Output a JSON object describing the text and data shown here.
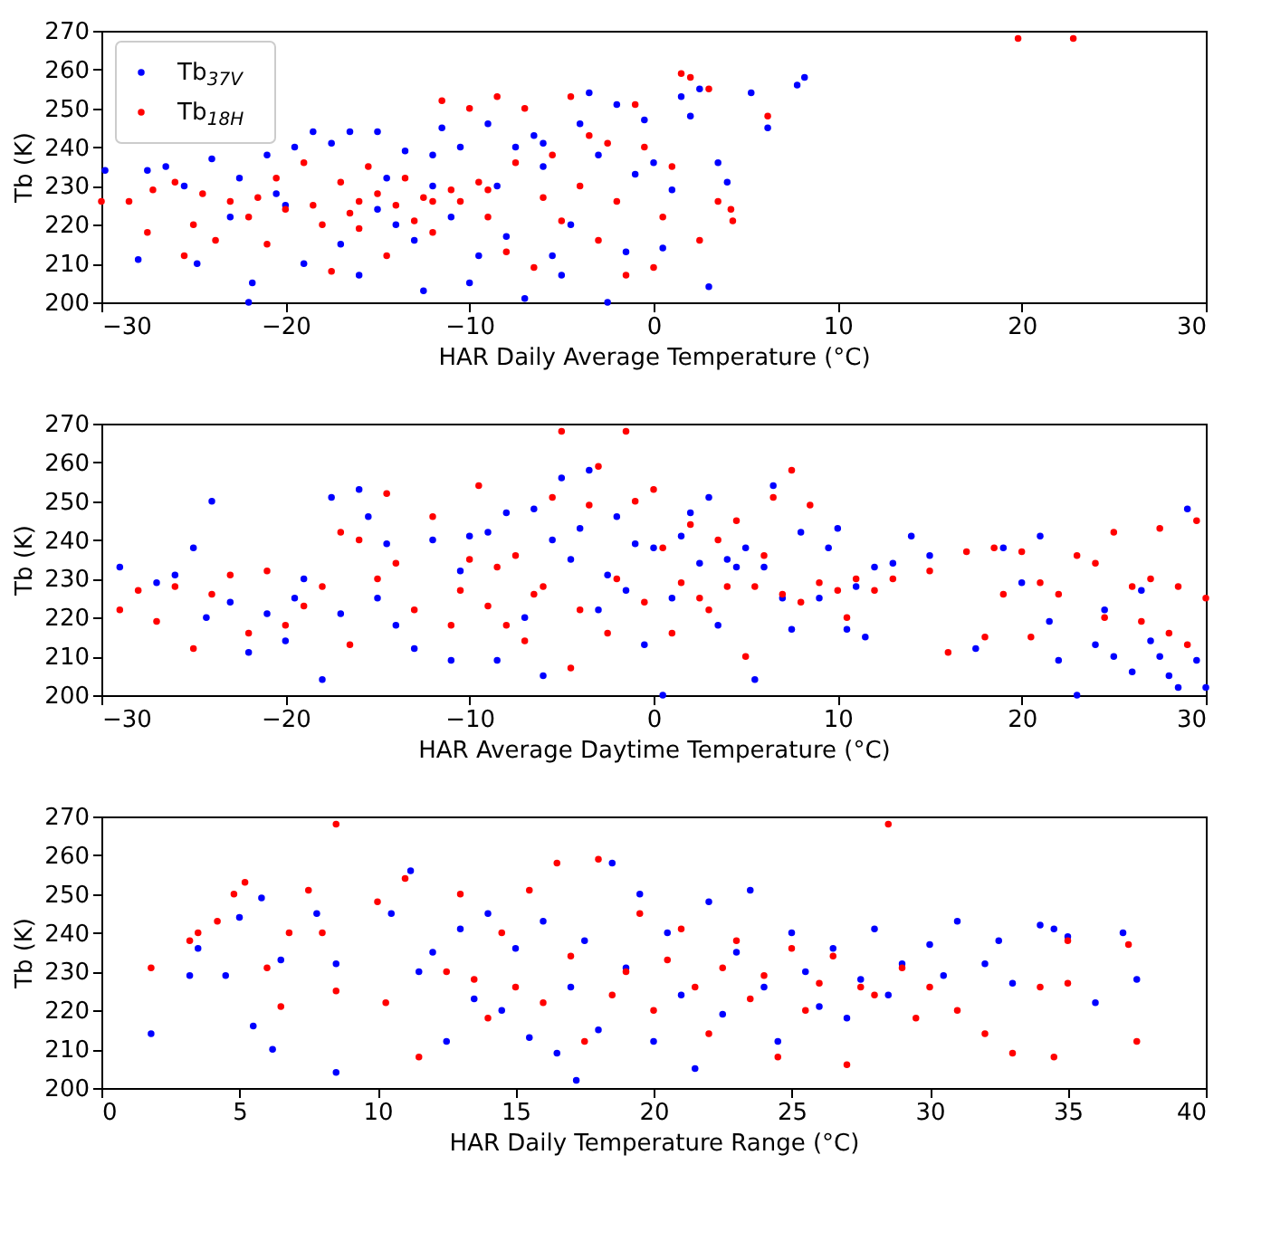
{
  "chart_data": [
    {
      "type": "scatter",
      "xlabel": "HAR Daily Average Temperature (°C)",
      "ylabel": "Tb (K)",
      "marker": "circle",
      "grid": false,
      "legend": "top left",
      "xlim": [
        -30,
        30
      ],
      "xticks": [
        {
          "value": -30,
          "label": "−30"
        },
        {
          "value": -20,
          "label": "−20"
        },
        {
          "value": -10,
          "label": "−10"
        },
        0,
        10,
        20,
        30
      ],
      "ylim": [
        200,
        270
      ],
      "yticks": [
        200,
        210,
        220,
        230,
        240,
        250,
        260,
        270
      ],
      "series": [
        {
          "name": "Tb$_{37V}$",
          "color": "#0000ff",
          "x": [
            -29.8,
            -28,
            -27.5,
            -26.5,
            -25.5,
            -24.8,
            -24,
            -23,
            -22.5,
            -22,
            -21.8,
            -21,
            -20,
            -19.5,
            -19,
            -18.5,
            -17.5,
            -17,
            -16.5,
            -16,
            -15,
            -14.5,
            -14,
            -13.5,
            -13,
            -12.5,
            -12,
            -11.5,
            -11,
            -10.5,
            -10,
            -9.5,
            -9,
            -8.5,
            -8,
            -7.5,
            -7,
            -6.5,
            -6,
            -5.5,
            -5,
            -4.5,
            -4,
            -3.5,
            -3,
            -2.5,
            -2,
            -1.5,
            -1,
            -0.5,
            0,
            0.5,
            1,
            1.5,
            2,
            2.5,
            3,
            3.5,
            4,
            5.3,
            6.2,
            7.8,
            8.2,
            -6,
            -15,
            -20.5,
            -12
          ],
          "values": [
            234,
            211,
            234,
            235,
            230,
            210,
            237,
            222,
            232,
            200,
            205,
            238,
            225,
            240,
            210,
            244,
            241,
            215,
            244,
            207,
            244,
            232,
            220,
            239,
            216,
            203,
            238,
            245,
            222,
            240,
            205,
            212,
            246,
            230,
            217,
            240,
            201,
            243,
            235,
            212,
            207,
            220,
            246,
            254,
            238,
            200,
            251,
            213,
            233,
            247,
            236,
            214,
            229,
            253,
            248,
            255,
            204,
            236,
            231,
            254,
            245,
            256,
            258,
            241,
            224,
            228,
            230
          ]
        },
        {
          "name": "Tb$_{18H}$",
          "color": "#ff0000",
          "x": [
            -30,
            -28.5,
            -27.5,
            -27.2,
            -26,
            -25.5,
            -25,
            -24.5,
            -23.8,
            -23,
            -22,
            -21.5,
            -21,
            -20.5,
            -20,
            -19,
            -18.5,
            -18,
            -17.5,
            -17,
            -16.5,
            -16,
            -15.5,
            -15,
            -14.5,
            -14,
            -13.5,
            -13,
            -12.5,
            -12,
            -11.5,
            -11,
            -10.5,
            -10,
            -9.5,
            -9,
            -8.5,
            -8,
            -7.5,
            -7,
            -6.5,
            -6,
            -5.5,
            -5,
            -4.5,
            -4,
            -3.5,
            -3,
            -2.5,
            -2,
            -1.5,
            -1,
            -0.5,
            0,
            0.5,
            1,
            1.5,
            2,
            2.5,
            3,
            3.5,
            4.3,
            4.2,
            6.2,
            19.8,
            22.8,
            -12,
            -9,
            -16
          ],
          "values": [
            226,
            226,
            218,
            229,
            231,
            212,
            220,
            228,
            216,
            226,
            222,
            227,
            215,
            232,
            224,
            236,
            225,
            220,
            208,
            231,
            223,
            219,
            235,
            228,
            212,
            225,
            232,
            221,
            227,
            218,
            252,
            229,
            226,
            250,
            231,
            222,
            253,
            213,
            236,
            250,
            209,
            227,
            238,
            221,
            253,
            230,
            243,
            216,
            241,
            226,
            207,
            251,
            240,
            209,
            222,
            235,
            259,
            258,
            216,
            255,
            226,
            221,
            224,
            248,
            268,
            268,
            226,
            229,
            226
          ]
        }
      ]
    },
    {
      "type": "scatter",
      "xlabel": "HAR Average Daytime Temperature (°C)",
      "ylabel": "Tb (K)",
      "marker": "circle",
      "grid": false,
      "xlim": [
        -30,
        30
      ],
      "xticks": [
        {
          "value": -30,
          "label": "−30"
        },
        {
          "value": -20,
          "label": "−20"
        },
        {
          "value": -10,
          "label": "−10"
        },
        0,
        10,
        20,
        30
      ],
      "ylim": [
        200,
        270
      ],
      "yticks": [
        200,
        210,
        220,
        230,
        240,
        250,
        260,
        270
      ],
      "series": [
        {
          "color": "#0000ff",
          "x": [
            -29,
            -27,
            -26,
            -25,
            -24,
            -24.3,
            -23,
            -22,
            -21,
            -20,
            -19.5,
            -19,
            -18,
            -17.5,
            -17,
            -16,
            -15.5,
            -15,
            -14.5,
            -14,
            -13,
            -12,
            -11,
            -10.5,
            -10,
            -9,
            -8.5,
            -8,
            -7,
            -6.5,
            -6,
            -5.5,
            -5,
            -4.5,
            -4,
            -3.5,
            -3,
            -2.5,
            -2,
            -1.5,
            -1,
            -0.5,
            0,
            0.5,
            1,
            1.5,
            2,
            2.5,
            3,
            3.5,
            4,
            4.5,
            5,
            5.5,
            6,
            6.5,
            7,
            7.5,
            8,
            9,
            9.5,
            10,
            10.5,
            11,
            11.5,
            12,
            13,
            14,
            15,
            17.5,
            19,
            20,
            21,
            21.5,
            22,
            23,
            24,
            24.5,
            25,
            26,
            26.5,
            27,
            27.5,
            28,
            28.5,
            29,
            29.5,
            30
          ],
          "values": [
            233,
            229,
            231,
            238,
            250,
            220,
            224,
            211,
            221,
            214,
            225,
            230,
            204,
            251,
            221,
            253,
            246,
            225,
            239,
            218,
            212,
            240,
            209,
            232,
            241,
            242,
            209,
            247,
            220,
            248,
            205,
            240,
            256,
            235,
            243,
            258,
            222,
            231,
            246,
            227,
            239,
            213,
            238,
            200,
            225,
            241,
            247,
            234,
            251,
            218,
            235,
            233,
            238,
            204,
            233,
            254,
            225,
            217,
            242,
            225,
            238,
            243,
            217,
            228,
            215,
            233,
            234,
            241,
            236,
            212,
            238,
            229,
            241,
            219,
            209,
            200,
            213,
            222,
            210,
            206,
            227,
            214,
            210,
            205,
            202,
            248,
            209,
            202
          ]
        },
        {
          "color": "#ff0000",
          "x": [
            -29,
            -28,
            -27,
            -26,
            -25,
            -24,
            -23,
            -22,
            -21,
            -20,
            -19,
            -18,
            -17,
            -16.5,
            -16,
            -15,
            -14.5,
            -14,
            -13,
            -12,
            -11,
            -10.5,
            -10,
            -9.5,
            -9,
            -8.5,
            -8,
            -7.5,
            -7,
            -6.5,
            -6,
            -5.5,
            -5,
            -4.5,
            -4,
            -3.5,
            -3,
            -2.5,
            -2,
            -1.5,
            -1,
            -0.5,
            0,
            0.5,
            1,
            1.5,
            2,
            2.5,
            3,
            3.5,
            4,
            4.5,
            5,
            5.5,
            6,
            6.5,
            7,
            7.5,
            8,
            8.5,
            9,
            10,
            10.5,
            11,
            12,
            13,
            15,
            16,
            17,
            18,
            18.5,
            19,
            20,
            20.5,
            21,
            22,
            23,
            24,
            24.5,
            25,
            26,
            26.5,
            27,
            27.5,
            28,
            28.5,
            29,
            29.5,
            30
          ],
          "values": [
            222,
            227,
            219,
            228,
            212,
            226,
            231,
            216,
            232,
            218,
            223,
            228,
            242,
            213,
            240,
            230,
            252,
            234,
            222,
            246,
            218,
            227,
            235,
            254,
            223,
            233,
            218,
            236,
            214,
            226,
            228,
            251,
            268,
            207,
            222,
            249,
            259,
            216,
            230,
            268,
            250,
            224,
            253,
            238,
            216,
            229,
            244,
            225,
            222,
            240,
            228,
            245,
            210,
            228,
            236,
            251,
            226,
            258,
            224,
            249,
            229,
            227,
            220,
            230,
            227,
            230,
            232,
            211,
            237,
            215,
            238,
            226,
            237,
            215,
            229,
            226,
            236,
            234,
            220,
            242,
            228,
            219,
            230,
            243,
            216,
            228,
            213,
            245,
            225
          ]
        }
      ]
    },
    {
      "type": "scatter",
      "xlabel": "HAR Daily Temperature Range (°C)",
      "ylabel": "Tb (K)",
      "marker": "circle",
      "grid": false,
      "xlim": [
        0,
        40
      ],
      "xticks": [
        0,
        5,
        10,
        15,
        20,
        25,
        30,
        35,
        40
      ],
      "ylim": [
        200,
        270
      ],
      "yticks": [
        200,
        210,
        220,
        230,
        240,
        250,
        260,
        270
      ],
      "series": [
        {
          "color": "#0000ff",
          "x": [
            1.8,
            3.2,
            3.5,
            4.5,
            5,
            5.5,
            5.8,
            6.2,
            6.5,
            7.8,
            8.5,
            8.5,
            10.5,
            11.2,
            11.5,
            12,
            12.5,
            13,
            13.5,
            14,
            14.5,
            15,
            15.5,
            16,
            16.5,
            17,
            17.2,
            17.5,
            18,
            18.5,
            19,
            19.5,
            20,
            20.5,
            21,
            21.5,
            22,
            22.5,
            23,
            23.5,
            24,
            24.5,
            25,
            25.5,
            26,
            26.5,
            27,
            27.5,
            28,
            28.5,
            29,
            30,
            30.5,
            31,
            32,
            32.5,
            33,
            34,
            34.5,
            35,
            36,
            37,
            37.5
          ],
          "values": [
            214,
            229,
            236,
            229,
            244,
            216,
            249,
            210,
            233,
            245,
            204,
            232,
            245,
            256,
            230,
            235,
            212,
            241,
            223,
            245,
            220,
            236,
            213,
            243,
            209,
            226,
            202,
            238,
            215,
            258,
            231,
            250,
            212,
            240,
            224,
            205,
            248,
            219,
            235,
            251,
            226,
            212,
            240,
            230,
            221,
            236,
            218,
            228,
            241,
            224,
            232,
            237,
            229,
            243,
            232,
            238,
            227,
            242,
            241,
            239,
            222,
            240,
            228
          ]
        },
        {
          "color": "#ff0000",
          "x": [
            1.8,
            3.2,
            3.5,
            4.2,
            4.8,
            5.2,
            6,
            6.5,
            6.8,
            7.5,
            8,
            8.5,
            8.5,
            10,
            10.3,
            11,
            11.5,
            12.5,
            13,
            13.5,
            14,
            14.5,
            15,
            15.5,
            16,
            16.5,
            17,
            17.5,
            18,
            18.5,
            19,
            19.5,
            20,
            20.5,
            21,
            21.5,
            22,
            22.5,
            23,
            23.5,
            24,
            24.5,
            25,
            25.5,
            26,
            26.5,
            27,
            27.5,
            28,
            28.5,
            29,
            29.5,
            30,
            31,
            32,
            33,
            34,
            34.5,
            35,
            35,
            37.2,
            37.5
          ],
          "values": [
            231,
            238,
            240,
            243,
            250,
            253,
            231,
            221,
            240,
            251,
            240,
            268,
            225,
            248,
            222,
            254,
            208,
            230,
            250,
            228,
            218,
            240,
            226,
            251,
            222,
            258,
            234,
            212,
            259,
            224,
            230,
            245,
            220,
            233,
            241,
            226,
            214,
            231,
            238,
            223,
            229,
            208,
            236,
            220,
            227,
            234,
            206,
            226,
            224,
            268,
            231,
            218,
            226,
            220,
            214,
            209,
            226,
            208,
            238,
            227,
            237,
            212
          ]
        }
      ]
    }
  ]
}
